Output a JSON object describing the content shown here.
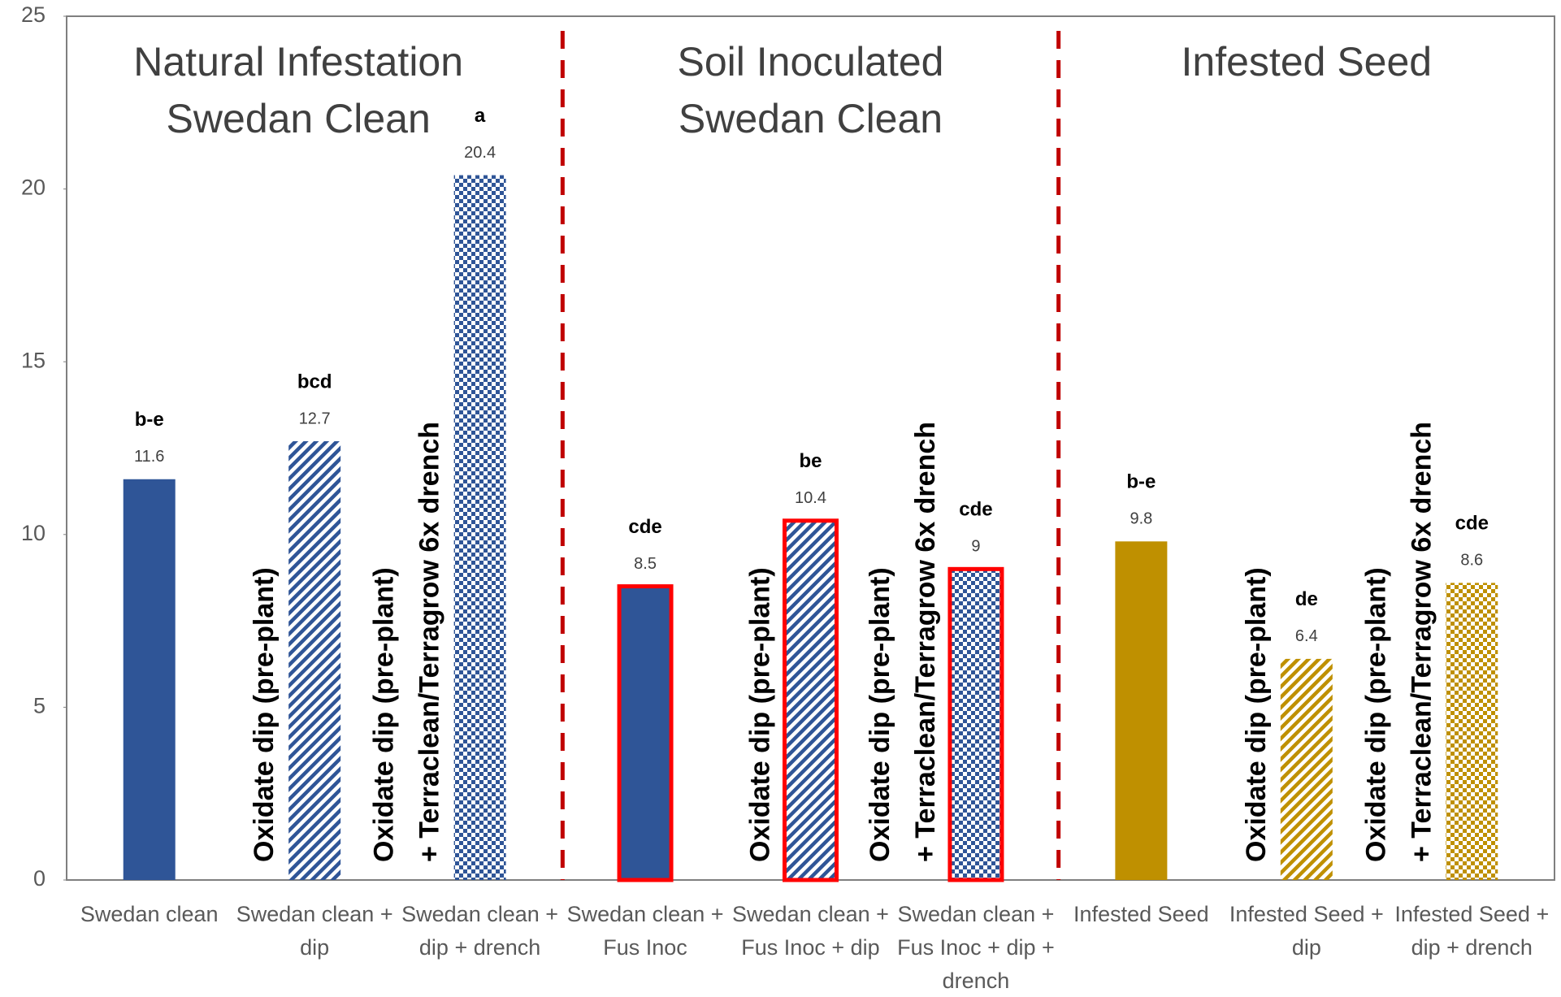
{
  "chart_data": {
    "type": "bar",
    "categories": [
      "Swedan clean",
      "Swedan clean + dip",
      "Swedan clean + dip + drench",
      "Swedan clean + Fus Inoc",
      "Swedan clean + Fus Inoc + dip",
      "Swedan clean + Fus Inoc + dip + drench",
      "Infested Seed",
      "Infested Seed + dip",
      "Infested Seed + dip + drench"
    ],
    "values": [
      11.6,
      12.7,
      20.4,
      8.5,
      10.4,
      9,
      9.8,
      6.4,
      8.6
    ],
    "letters": [
      "b-e",
      "bcd",
      "a",
      "cde",
      "be",
      "cde",
      "b-e",
      "de",
      "cde"
    ],
    "colors": [
      "#2f5597",
      "#2f5597",
      "#2f5597",
      "#2f5597",
      "#2f5597",
      "#2f5597",
      "#bf9000",
      "#bf9000",
      "#bf9000"
    ],
    "patterns": [
      "solid",
      "diagonal",
      "checker",
      "solid",
      "diagonal",
      "checker",
      "solid",
      "diagonal",
      "checker"
    ],
    "outlines": [
      null,
      null,
      null,
      "#ff0000",
      "#ff0000",
      "#ff0000",
      null,
      null,
      null
    ],
    "bar_notes": [
      null,
      [
        "Oxidate dip (pre-plant)"
      ],
      [
        "Oxidate dip (pre-plant)",
        "+ Terraclean/Terragrow 6x drench"
      ],
      null,
      [
        "Oxidate dip (pre-plant)"
      ],
      [
        "Oxidate dip (pre-plant)",
        "+ Terraclean/Terragrow 6x drench"
      ],
      null,
      [
        "Oxidate dip (pre-plant)"
      ],
      [
        "Oxidate dip (pre-plant)",
        "+ Terraclean/Terragrow 6x drench"
      ]
    ],
    "groups": [
      [
        "Natural Infestation",
        "Swedan Clean"
      ],
      [
        "Soil Inoculated",
        "Swedan Clean"
      ],
      [
        "Infested Seed"
      ]
    ],
    "separator_color": "#c00000",
    "ylim": [
      0,
      25
    ],
    "yticks": [
      0,
      5,
      10,
      15,
      20,
      25
    ],
    "grid": false
  }
}
